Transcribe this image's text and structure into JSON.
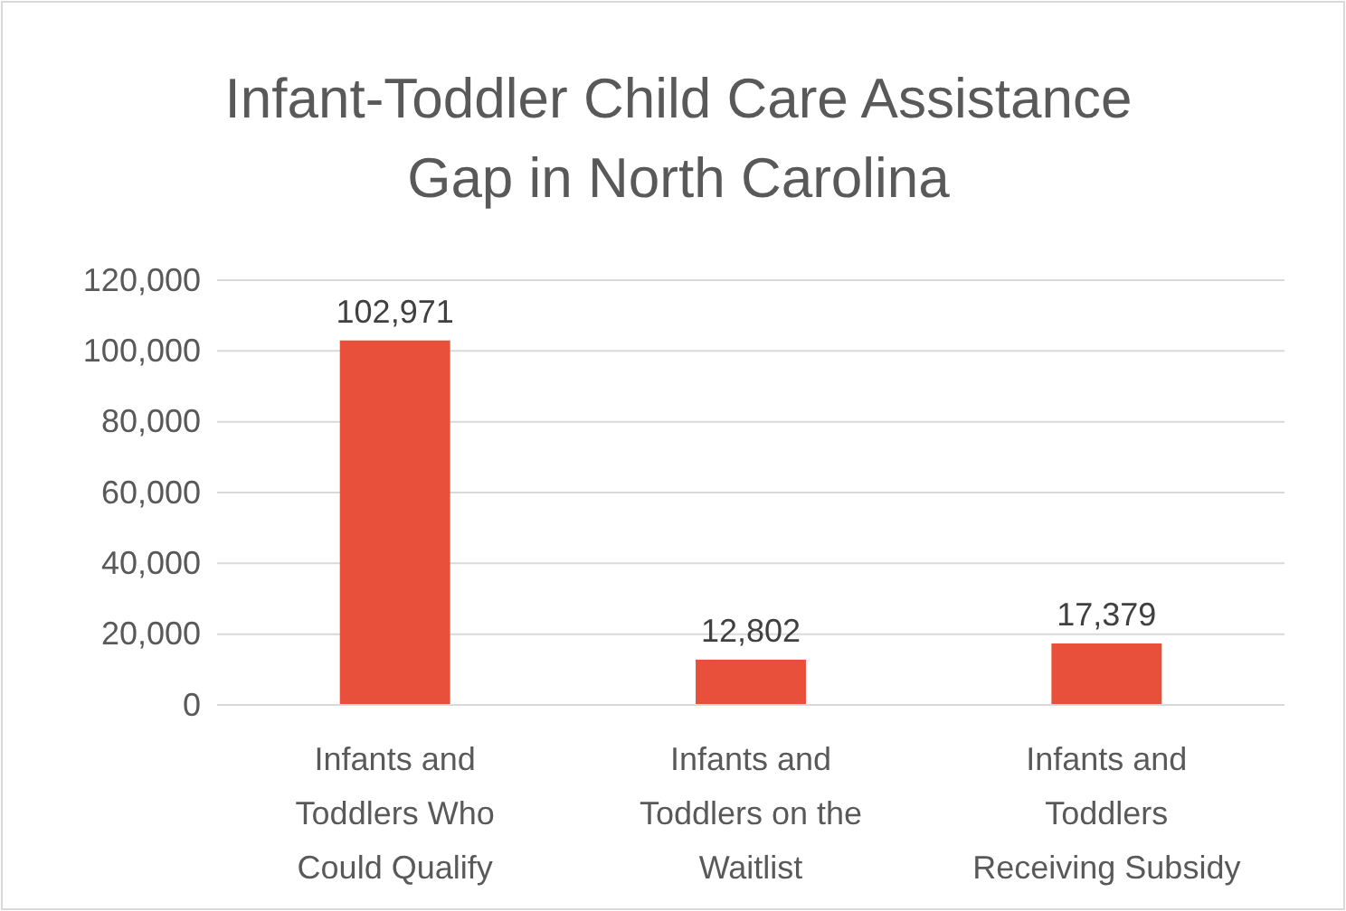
{
  "chart_data": {
    "type": "bar",
    "title": "Infant-Toddler Child Care Assistance Gap in North Carolina",
    "categories": [
      "Infants and Toddlers Who Could Qualify",
      "Infants and Toddlers on the Waitlist",
      "Infants and Toddlers Receiving Subsidy"
    ],
    "values": [
      102971,
      12802,
      17379
    ],
    "color": "#e9503c",
    "ylim": [
      0,
      120000
    ],
    "yticks": [
      {
        "value": 0,
        "label": "0"
      },
      {
        "value": 20000,
        "label": "20,000"
      },
      {
        "value": 40000,
        "label": "40,000"
      },
      {
        "value": 60000,
        "label": "60,000"
      },
      {
        "value": 80000,
        "label": "80,000"
      },
      {
        "value": 100000,
        "label": "100,000"
      },
      {
        "value": 120000,
        "label": "120,000"
      }
    ],
    "grid": "y",
    "value_labels": [
      "102,971",
      "12,802",
      "17,379"
    ]
  }
}
